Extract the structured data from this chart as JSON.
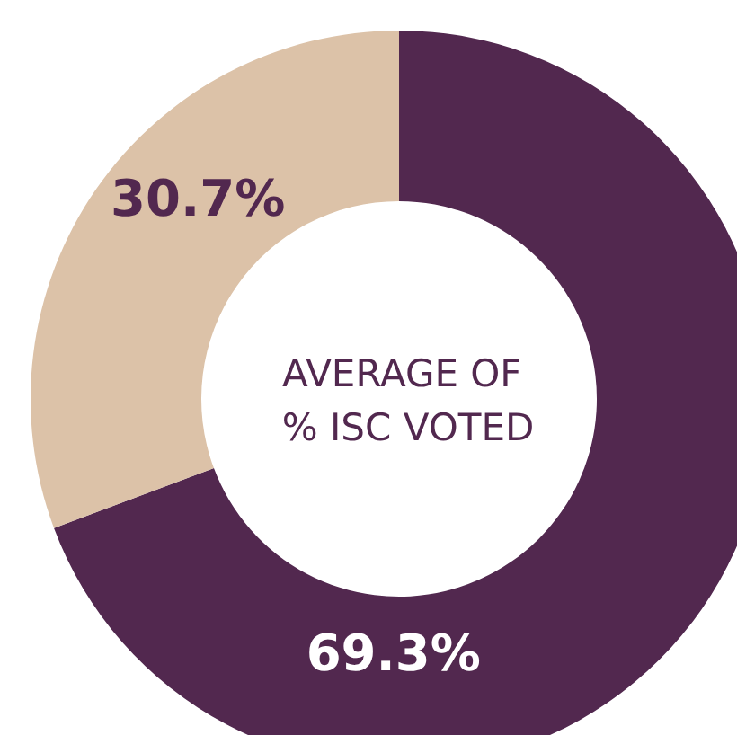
{
  "chart_data": {
    "type": "donut",
    "title": "AVERAGE OF % ISC VOTED",
    "categories": [
      null,
      null
    ],
    "values": [
      69.3,
      30.7
    ],
    "colors": [
      "#52284f",
      "#dcc2a8"
    ],
    "value_labels": [
      "69.3%",
      "30.7%"
    ]
  }
}
